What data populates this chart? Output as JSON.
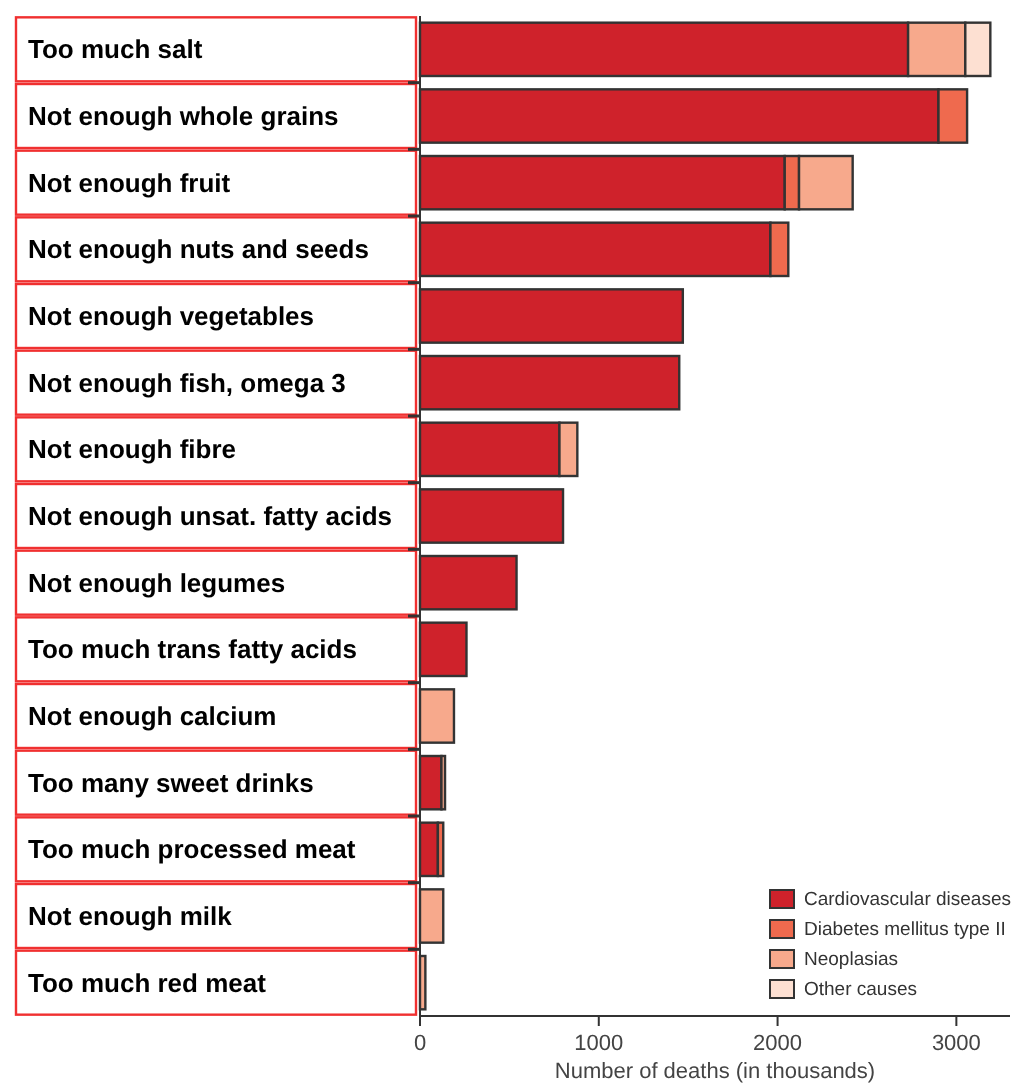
{
  "chart_data": {
    "type": "bar",
    "orientation": "horizontal",
    "stacked": true,
    "xlabel": "Number of deaths (in thousands)",
    "categories": [
      "Too much salt",
      "Not enough whole grains",
      "Not enough fruit",
      "Not enough nuts and seeds",
      "Not enough vegetables",
      "Not enough fish, omega 3",
      "Not enough fibre",
      "Not enough unsat. fatty acids",
      "Not enough legumes",
      "Too much trans fatty acids",
      "Not enough calcium",
      "Too many sweet drinks",
      "Too much processed meat",
      "Not enough milk",
      "Too much red meat"
    ],
    "series": [
      {
        "name": "Cardiovascular diseases",
        "color": "#cf222b",
        "values": [
          2730,
          2900,
          2040,
          1960,
          1470,
          1450,
          780,
          800,
          540,
          260,
          null,
          120,
          100,
          null,
          null
        ]
      },
      {
        "name": "Diabetes mellitus type II",
        "color": "#ef6a4e",
        "values": [
          null,
          160,
          80,
          100,
          null,
          null,
          null,
          null,
          null,
          null,
          null,
          null,
          30,
          null,
          null
        ]
      },
      {
        "name": "Neoplasias",
        "color": "#f7a98c",
        "values": [
          320,
          null,
          300,
          null,
          null,
          null,
          100,
          null,
          null,
          null,
          190,
          20,
          null,
          130,
          30
        ]
      },
      {
        "name": "Other causes",
        "color": "#fde0d2",
        "values": [
          140,
          null,
          null,
          null,
          null,
          null,
          null,
          null,
          null,
          null,
          null,
          null,
          null,
          null,
          null
        ]
      }
    ],
    "xlim": [
      0,
      3300
    ],
    "xticks": [
      0,
      1000,
      2000,
      3000
    ],
    "legend": "bottom right",
    "grid": false
  }
}
